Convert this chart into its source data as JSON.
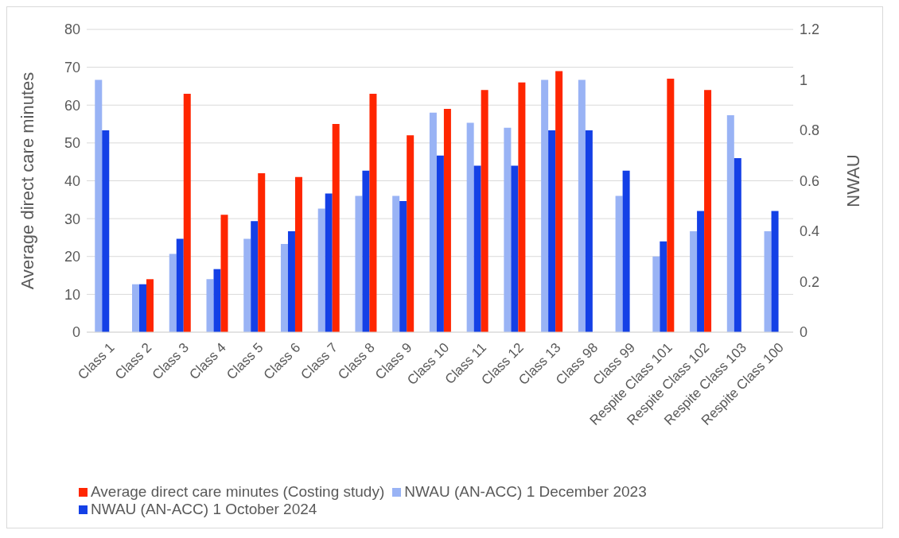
{
  "chart_data": {
    "type": "bar",
    "ylabel": "Average direct care minutes",
    "y2label": "NWAU",
    "categories": [
      "Class 1",
      "Class 2",
      "Class 3",
      "Class 4",
      "Class 5",
      "Class 6",
      "Class 7",
      "Class 8",
      "Class 9",
      "Class 10",
      "Class 11",
      "Class 12",
      "Class 13",
      "Class 98",
      "Class 99",
      "Respite Class 101",
      "Respite Class 102",
      "Respite Class 103",
      "Respite Class 100"
    ],
    "series": [
      {
        "name": "NWAU (AN-ACC) 1 December 2023",
        "color": "#99b3f5",
        "axis": "y2",
        "values": [
          1.0,
          0.19,
          0.31,
          0.21,
          0.37,
          0.35,
          0.49,
          0.54,
          0.54,
          0.87,
          0.83,
          0.81,
          1.0,
          1.0,
          0.54,
          0.3,
          0.4,
          0.86,
          0.4
        ]
      },
      {
        "name": "NWAU (AN-ACC) 1 October 2024",
        "color": "#1440e6",
        "axis": "y2",
        "values": [
          0.8,
          0.19,
          0.37,
          0.25,
          0.44,
          0.4,
          0.55,
          0.64,
          0.52,
          0.7,
          0.66,
          0.66,
          0.8,
          0.8,
          0.64,
          0.36,
          0.48,
          0.69,
          0.48
        ]
      },
      {
        "name": "Average direct care minutes (Costing study)",
        "color": "#ff2600",
        "values": [
          null,
          14,
          63,
          31,
          42,
          41,
          55,
          63,
          52,
          59,
          64,
          66,
          69,
          null,
          null,
          67,
          64,
          null,
          null
        ]
      }
    ],
    "ylim": [
      0,
      80
    ],
    "yticks": [
      0,
      10,
      20,
      30,
      40,
      50,
      60,
      70,
      80
    ],
    "y2lim": [
      0,
      1.2
    ],
    "y2ticks": [
      {
        "value": 0,
        "label": "0"
      },
      {
        "value": 0.2,
        "label": "0.2"
      },
      {
        "value": 0.4,
        "label": "0.4"
      },
      {
        "value": 0.6,
        "label": "0.6"
      },
      {
        "value": 0.8,
        "label": "0.8"
      },
      {
        "value": 1,
        "label": "1"
      },
      {
        "value": 1.2,
        "label": "1.2"
      }
    ],
    "grid": "y",
    "legend": "bottom"
  }
}
